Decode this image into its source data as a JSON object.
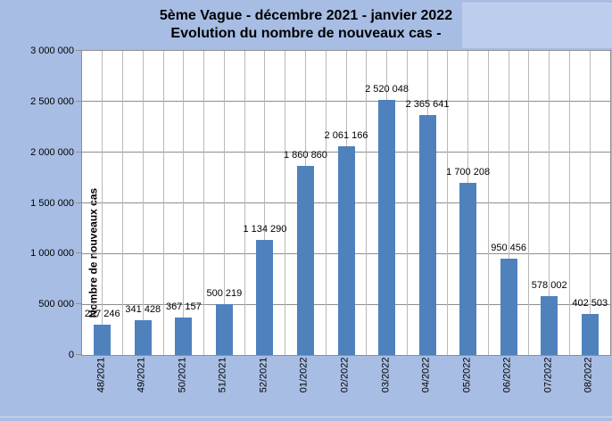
{
  "title": {
    "line1": "5ème Vague - décembre 2021 - janvier 2022",
    "line2": "Evolution du nombre de nouveaux cas -"
  },
  "chart_data": {
    "type": "bar",
    "categories": [
      "48/2021",
      "49/2021",
      "50/2021",
      "51/2021",
      "52/2021",
      "01/2022",
      "02/2022",
      "03/2022",
      "04/2022",
      "05/2022",
      "06/2022",
      "07/2022",
      "08/2022"
    ],
    "values": [
      297246,
      341428,
      367157,
      500219,
      1134290,
      1860860,
      2061166,
      2520048,
      2365641,
      1700208,
      950456,
      578002,
      402503
    ],
    "values_formatted": [
      "297 246",
      "341 428",
      "367 157",
      "500 219",
      "1 134 290",
      "1 860 860",
      "2 061 166",
      "2 520 048",
      "2 365 641",
      "1 700 208",
      "950 456",
      "578 002",
      "402 503"
    ],
    "title": "5ème Vague - décembre 2021 - janvier 2022 Evolution du nombre de nouveaux cas -",
    "xlabel": "",
    "ylabel": "Nombre de nouveaux cas",
    "ylim": [
      0,
      3000000
    ],
    "ytick_interval": 500000,
    "yticks": [
      {
        "value": 0,
        "label": "0"
      },
      {
        "value": 500000,
        "label": "500 000"
      },
      {
        "value": 1000000,
        "label": "1 000 000"
      },
      {
        "value": 1500000,
        "label": "1 500 000"
      },
      {
        "value": 2000000,
        "label": "2 000 000"
      },
      {
        "value": 2500000,
        "label": "2 500 000"
      },
      {
        "value": 3000000,
        "label": "3 000 000"
      }
    ],
    "grid": "horizontal major + vertical half-category",
    "legend": "none",
    "data_labels": "above bars",
    "colors": {
      "bar": "#4f81bd",
      "background": "#a7bde4",
      "plot_background": "#ffffff",
      "gridline_horizontal": "#8e8e8e",
      "gridline_vertical": "#b9b9b9",
      "axis_border": "#8e8e8e",
      "text": "#000000",
      "highlight_box": "#bccdee"
    }
  }
}
